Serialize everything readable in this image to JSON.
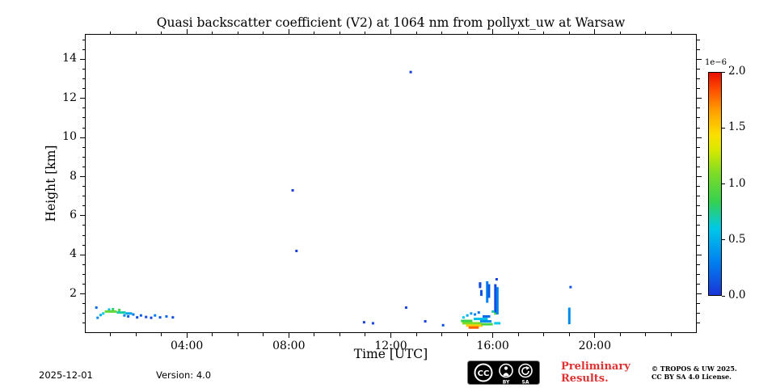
{
  "chart_data": {
    "type": "heatmap",
    "title": "Quasi backscatter coefficient (V2) at 1064 nm from pollyxt_uw at Warsaw",
    "xlabel": "Time [UTC]",
    "ylabel": "Height [km]",
    "x_range_hours": [
      0,
      24
    ],
    "y_range_km": [
      0,
      15.3
    ],
    "grid": false,
    "x_major_ticks": [
      {
        "hour": 4,
        "label": "04:00"
      },
      {
        "hour": 8,
        "label": "08:00"
      },
      {
        "hour": 12,
        "label": "12:00"
      },
      {
        "hour": 16,
        "label": "16:00"
      },
      {
        "hour": 20,
        "label": "20:00"
      }
    ],
    "x_minor_step_hours": 1,
    "y_major_ticks": [
      {
        "km": 2,
        "label": "2"
      },
      {
        "km": 4,
        "label": "4"
      },
      {
        "km": 6,
        "label": "6"
      },
      {
        "km": 8,
        "label": "8"
      },
      {
        "km": 10,
        "label": "10"
      },
      {
        "km": 12,
        "label": "12"
      },
      {
        "km": 14,
        "label": "14"
      }
    ],
    "y_minor_step_km": 0.5,
    "colorbar": {
      "exponent_label": "1e−6",
      "min": 0.0,
      "max": 2.0,
      "tick_values": [
        0.0,
        0.5,
        1.0,
        1.5,
        2.0
      ],
      "tick_labels": [
        "0.0",
        "0.5",
        "1.0",
        "1.5",
        "2.0"
      ],
      "colormap_stops": [
        {
          "u": 0.0,
          "color": "#1a35d8"
        },
        {
          "u": 0.15,
          "color": "#0080f0"
        },
        {
          "u": 0.3,
          "color": "#00c8e8"
        },
        {
          "u": 0.42,
          "color": "#35d150"
        },
        {
          "u": 0.55,
          "color": "#7fdc25"
        },
        {
          "u": 0.65,
          "color": "#d6e800"
        },
        {
          "u": 0.72,
          "color": "#fbe000"
        },
        {
          "u": 0.83,
          "color": "#ff9e00"
        },
        {
          "u": 0.92,
          "color": "#ff5000"
        },
        {
          "u": 1.0,
          "color": "#e90f00"
        }
      ]
    },
    "points": [
      [
        0.45,
        1.3,
        0.2
      ],
      [
        0.5,
        0.78,
        0.35
      ],
      [
        0.62,
        0.92,
        0.5
      ],
      [
        0.72,
        1.0,
        0.6
      ],
      [
        0.95,
        1.2,
        0.55
      ],
      [
        1.1,
        1.22,
        0.8
      ],
      [
        1.35,
        1.18,
        0.9
      ],
      [
        1.55,
        0.9,
        0.3
      ],
      [
        1.7,
        0.85,
        0.15
      ],
      [
        1.9,
        0.95,
        0.25
      ],
      [
        2.05,
        0.8,
        0.1
      ],
      [
        2.2,
        0.9,
        0.15
      ],
      [
        2.4,
        0.82,
        0.08
      ],
      [
        2.6,
        0.78,
        0.05
      ],
      [
        2.75,
        0.9,
        0.3
      ],
      [
        2.95,
        0.8,
        0.12
      ],
      [
        3.2,
        0.85,
        0.2
      ],
      [
        3.45,
        0.8,
        0.1
      ],
      [
        8.15,
        7.3,
        0.03
      ],
      [
        8.3,
        4.2,
        0.03
      ],
      [
        12.78,
        13.35,
        0.03
      ],
      [
        10.95,
        0.55,
        0.05
      ],
      [
        11.3,
        0.5,
        0.05
      ],
      [
        12.6,
        1.3,
        0.05
      ],
      [
        13.35,
        0.6,
        0.05
      ],
      [
        14.05,
        0.4,
        0.1
      ],
      [
        14.85,
        0.8,
        0.6
      ],
      [
        15.0,
        0.9,
        0.5
      ],
      [
        15.15,
        1.0,
        0.4
      ],
      [
        15.3,
        0.95,
        0.3
      ],
      [
        15.45,
        1.05,
        0.25
      ],
      [
        15.5,
        2.5,
        0.08
      ],
      [
        16.0,
        1.1,
        0.7
      ],
      [
        16.1,
        1.0,
        0.9
      ],
      [
        16.15,
        2.75,
        0.05
      ],
      [
        19.05,
        2.35,
        0.15
      ]
    ],
    "h_segments": [
      {
        "t0": 0.78,
        "t1": 1.25,
        "h": 1.1,
        "v": 1.0
      },
      {
        "t0": 1.25,
        "t1": 1.6,
        "h": 1.05,
        "v": 0.7
      },
      {
        "t0": 1.6,
        "t1": 1.85,
        "h": 1.0,
        "v": 0.45
      },
      {
        "t0": 14.75,
        "t1": 15.2,
        "h": 0.62,
        "v": 0.85
      },
      {
        "t0": 14.8,
        "t1": 15.55,
        "h": 0.5,
        "v": 1.1
      },
      {
        "t0": 14.95,
        "t1": 15.6,
        "h": 0.38,
        "v": 1.5
      },
      {
        "t0": 15.05,
        "t1": 15.45,
        "h": 0.28,
        "v": 1.8
      },
      {
        "t0": 15.25,
        "t1": 15.8,
        "h": 0.72,
        "v": 0.55
      },
      {
        "t0": 15.5,
        "t1": 15.95,
        "h": 0.6,
        "v": 0.35
      },
      {
        "t0": 15.55,
        "t1": 16.0,
        "h": 0.45,
        "v": 0.9
      },
      {
        "t0": 15.6,
        "t1": 15.9,
        "h": 0.85,
        "v": 0.2
      },
      {
        "t0": 16.05,
        "t1": 16.3,
        "h": 0.5,
        "v": 0.6
      }
    ],
    "v_segments": [
      {
        "t": 15.5,
        "h0": 2.3,
        "h1": 2.6,
        "v": 0.08
      },
      {
        "t": 15.55,
        "h0": 1.9,
        "h1": 2.2,
        "v": 0.12
      },
      {
        "t": 15.78,
        "h0": 1.55,
        "h1": 2.65,
        "v": 0.3
      },
      {
        "t": 15.85,
        "h0": 1.8,
        "h1": 2.5,
        "v": 0.15
      },
      {
        "t": 16.1,
        "h0": 1.05,
        "h1": 2.5,
        "v": 0.08
      },
      {
        "t": 16.18,
        "h0": 0.95,
        "h1": 2.35,
        "v": 0.3
      },
      {
        "t": 19.0,
        "h0": 0.45,
        "h1": 1.3,
        "v": 0.35
      }
    ]
  },
  "footer": {
    "date": "2025-12-01",
    "version": "Version: 4.0",
    "preliminary_line1": "Preliminary",
    "preliminary_line2": "Results.",
    "preliminary_color": "#e03131",
    "copyright_line1": "© TROPOS & UW 2025.",
    "copyright_line2": "CC BY SA 4.0 License.",
    "license_badge": {
      "cc": "CC",
      "by": "BY",
      "sa": "SA"
    }
  }
}
